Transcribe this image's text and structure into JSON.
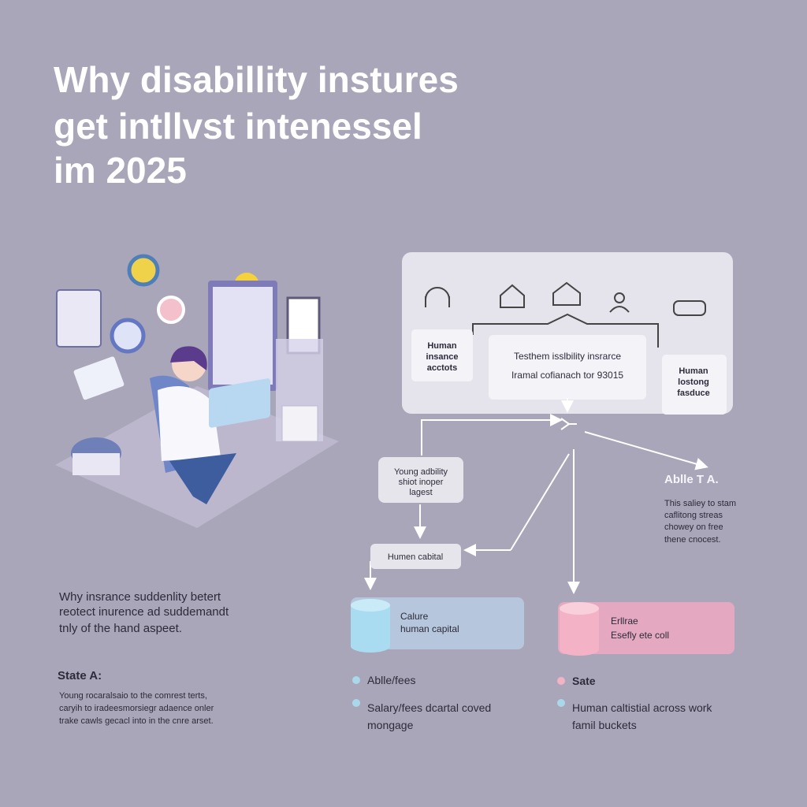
{
  "header": {
    "title_lines": [
      "Why disabillity instures",
      "get intllvst intenessel",
      "im 2025"
    ]
  },
  "panel": {
    "left_box": [
      "Human",
      "insance",
      "acctots"
    ],
    "center_box": [
      "Testhem isslbility insrarce",
      "Iramal cofianach tor 93015"
    ],
    "right_box": [
      "Human",
      "lostong",
      "fasduce"
    ]
  },
  "flow": {
    "box_a": [
      "Young adbility",
      "shiot inoper",
      "lagest"
    ],
    "box_b": "Humen cabital",
    "note_title": "Ablle T A.",
    "note_lines": [
      "This saliey to stam",
      "caflitong streas",
      "chowey on free",
      "thene cnocest."
    ]
  },
  "cylinders": [
    {
      "lines": [
        "Calure",
        "human capital"
      ]
    },
    {
      "lines": [
        "Erllrae",
        "Esefly ete coll"
      ]
    }
  ],
  "intro_lines": [
    "Why insrance suddenlity betert",
    "reotect inurence ad suddemandt",
    "tnly of the hand aspeet."
  ],
  "state": {
    "title": "State A:",
    "lines": [
      "Young rocaralsaio to the comrest terts,",
      "caryih to iradeesmorsiegr adaence onler",
      "trake cawls gecacl into in the cnre arset."
    ]
  },
  "legend": [
    {
      "lines": [
        "Ablle/fees"
      ]
    },
    {
      "lines": [
        "Salary/fees dcartal coved",
        "mongage"
      ]
    },
    {
      "lines": [
        "Sate"
      ]
    },
    {
      "lines": [
        "Human caltistial across work",
        "famil buckets"
      ]
    }
  ]
}
